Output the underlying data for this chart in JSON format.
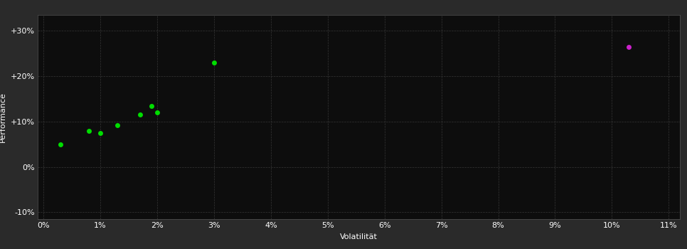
{
  "background_color": "#2a2a2a",
  "plot_bg_color": "#0d0d0d",
  "grid_color": "#3a3a3a",
  "green_points": [
    [
      0.003,
      0.05
    ],
    [
      0.008,
      0.08
    ],
    [
      0.01,
      0.075
    ],
    [
      0.013,
      0.092
    ],
    [
      0.017,
      0.115
    ],
    [
      0.019,
      0.135
    ],
    [
      0.02,
      0.12
    ],
    [
      0.03,
      0.23
    ]
  ],
  "magenta_points": [
    [
      0.103,
      0.265
    ]
  ],
  "green_color": "#00dd00",
  "magenta_color": "#cc22cc",
  "xlabel": "Volatilität",
  "ylabel": "Performance",
  "xlim": [
    -0.001,
    0.112
  ],
  "ylim": [
    -0.115,
    0.335
  ],
  "xticks": [
    0.0,
    0.01,
    0.02,
    0.03,
    0.04,
    0.05,
    0.06,
    0.07,
    0.08,
    0.09,
    0.1,
    0.11
  ],
  "yticks": [
    -0.1,
    0.0,
    0.1,
    0.2,
    0.3
  ],
  "ytick_labels": [
    "-10%",
    "0%",
    "+10%",
    "+20%",
    "+30%"
  ],
  "xtick_labels": [
    "0%",
    "1%",
    "2%",
    "3%",
    "4%",
    "5%",
    "6%",
    "7%",
    "8%",
    "9%",
    "10%",
    "11%"
  ],
  "marker_size": 5,
  "axis_fontsize": 8,
  "tick_fontsize": 8
}
